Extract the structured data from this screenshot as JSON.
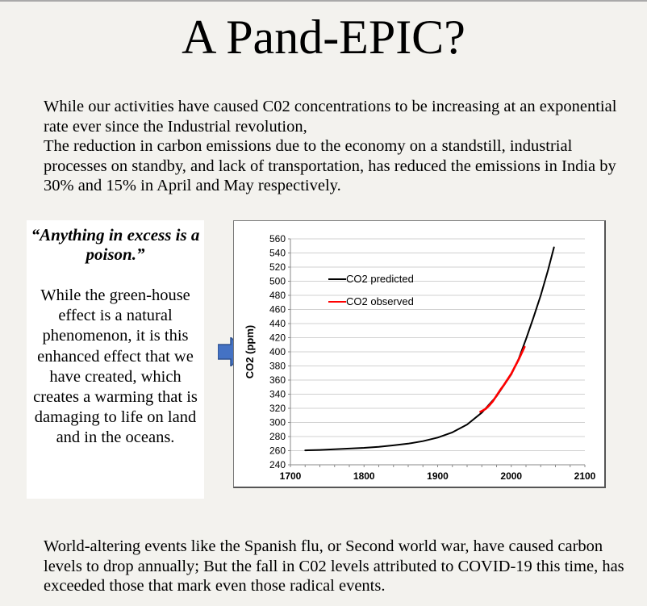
{
  "title": "A Pand-EPIC?",
  "intro": {
    "line1": "While our activities have caused C02 concentrations to be increasing at an exponential rate ever since the Industrial revolution,",
    "line2": "The reduction in carbon emissions due to the economy on a standstill, industrial processes on standby, and lack of transportation, has reduced the emissions in India by 30% and 15% in April and May respectively."
  },
  "quote": {
    "text": "“Anything in excess is a poison.”",
    "body": "While the green-house effect is a natural phenomenon, it is this enhanced effect that we have created, which creates a warming that is damaging to life on land and in the oceans."
  },
  "arrow_icon": "right-arrow-icon",
  "footer": "World-altering events like the Spanish flu, or Second world war, have caused carbon levels to drop annually; But the fall in C02 levels attributed to COVID-19 this time, has exceeded those that mark even those radical events.",
  "chart_data": {
    "type": "line",
    "title": "",
    "xlabel": "",
    "ylabel": "CO2 (ppm)",
    "xlim": [
      1700,
      2100
    ],
    "ylim": [
      240,
      560
    ],
    "x_ticks": [
      "1700",
      "1800",
      "1900",
      "2000",
      "2100"
    ],
    "y_ticks": [
      "240",
      "260",
      "280",
      "300",
      "320",
      "340",
      "360",
      "380",
      "400",
      "420",
      "440",
      "460",
      "480",
      "500",
      "520",
      "540",
      "560"
    ],
    "grid": "horizontal",
    "legend": "top-left",
    "series": [
      {
        "name": "CO2 predicted",
        "color": "#000000",
        "x": [
          1720,
          1740,
          1760,
          1780,
          1800,
          1820,
          1840,
          1860,
          1880,
          1900,
          1920,
          1940,
          1960,
          1980,
          2000,
          2010,
          2020,
          2030,
          2040,
          2050,
          2058
        ],
        "y": [
          260.5,
          261,
          262,
          263,
          264,
          265.5,
          267.5,
          270,
          273.5,
          278.5,
          286,
          297,
          314,
          337,
          368,
          390,
          418,
          448,
          480,
          516,
          548
        ]
      },
      {
        "name": "CO2 observed",
        "color": "#ff0000",
        "x": [
          1958,
          1965,
          1970,
          1975,
          1980,
          1985,
          1990,
          1995,
          2000,
          2005,
          2010,
          2015,
          2018
        ],
        "y": [
          315,
          319,
          324,
          330,
          338,
          346,
          353,
          361,
          369,
          379,
          389,
          400,
          407
        ]
      }
    ]
  }
}
